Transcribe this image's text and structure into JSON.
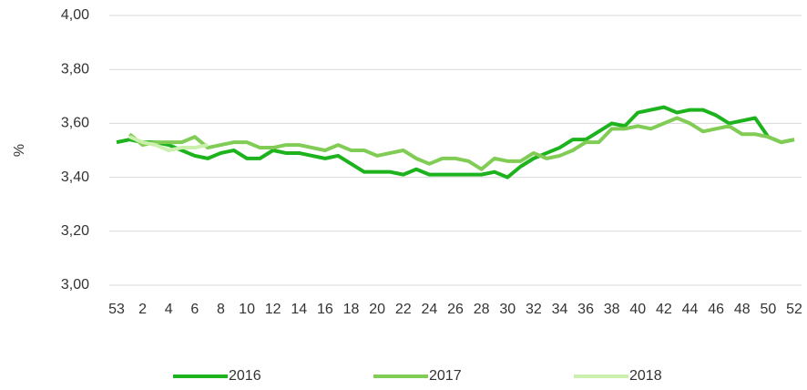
{
  "chart_data": {
    "type": "line",
    "y_label": "%",
    "categories": [
      "53",
      null,
      "2",
      null,
      "4",
      null,
      "6",
      null,
      "8",
      null,
      "10",
      null,
      "12",
      null,
      "14",
      null,
      "16",
      null,
      "18",
      null,
      "20",
      null,
      "22",
      null,
      "24",
      null,
      "26",
      null,
      "28",
      null,
      "30",
      null,
      "32",
      null,
      "34",
      null,
      "36",
      null,
      "38",
      null,
      "40",
      null,
      "42",
      null,
      "44",
      null,
      "46",
      null,
      "48",
      null,
      "50",
      null,
      "52"
    ],
    "series": [
      {
        "name": "2016",
        "color": "#1db31d",
        "values": [
          3.53,
          3.54,
          3.53,
          3.53,
          3.52,
          3.5,
          3.48,
          3.47,
          3.49,
          3.5,
          3.47,
          3.47,
          3.5,
          3.49,
          3.49,
          3.48,
          3.47,
          3.48,
          3.45,
          3.42,
          3.42,
          3.42,
          3.41,
          3.43,
          3.41,
          3.41,
          3.41,
          3.41,
          3.41,
          3.42,
          3.4,
          3.44,
          3.47,
          3.49,
          3.51,
          3.54,
          3.54,
          3.57,
          3.6,
          3.59,
          3.64,
          3.65,
          3.66,
          3.64,
          3.65,
          3.65,
          3.63,
          3.6,
          3.61,
          3.62,
          3.55,
          3.53,
          3.54
        ]
      },
      {
        "name": "2017",
        "color": "#80cc55",
        "values": [
          null,
          3.56,
          3.52,
          3.53,
          3.53,
          3.53,
          3.55,
          3.51,
          3.52,
          3.53,
          3.53,
          3.51,
          3.51,
          3.52,
          3.52,
          3.51,
          3.5,
          3.52,
          3.5,
          3.5,
          3.48,
          3.49,
          3.5,
          3.47,
          3.45,
          3.47,
          3.47,
          3.46,
          3.43,
          3.47,
          3.46,
          3.46,
          3.49,
          3.47,
          3.48,
          3.5,
          3.53,
          3.53,
          3.58,
          3.58,
          3.59,
          3.58,
          3.6,
          3.62,
          3.6,
          3.57,
          3.58,
          3.59,
          3.56,
          3.56,
          3.55,
          3.53,
          3.54
        ]
      },
      {
        "name": "2018",
        "color": "#cbf0ad",
        "values": [
          null,
          3.55,
          3.53,
          3.52,
          3.5,
          3.51,
          3.51,
          3.52,
          null,
          null,
          null,
          null,
          null,
          null,
          null,
          null,
          null,
          null,
          null,
          null,
          null,
          null,
          null,
          null,
          null,
          null,
          null,
          null,
          null,
          null,
          null,
          null,
          null,
          null,
          null,
          null,
          null,
          null,
          null,
          null,
          null,
          null,
          null,
          null,
          null,
          null,
          null,
          null,
          null,
          null,
          null,
          null,
          null
        ]
      }
    ],
    "ylim": [
      3.0,
      4.0
    ],
    "yticks": [
      {
        "value": 3.0,
        "label": "3,00"
      },
      {
        "value": 3.2,
        "label": "3,20"
      },
      {
        "value": 3.4,
        "label": "3,40"
      },
      {
        "value": 3.6,
        "label": "3,60"
      },
      {
        "value": 3.8,
        "label": "3,80"
      },
      {
        "value": 4.0,
        "label": "4,00"
      }
    ],
    "grid": true,
    "legend": "bottom"
  }
}
